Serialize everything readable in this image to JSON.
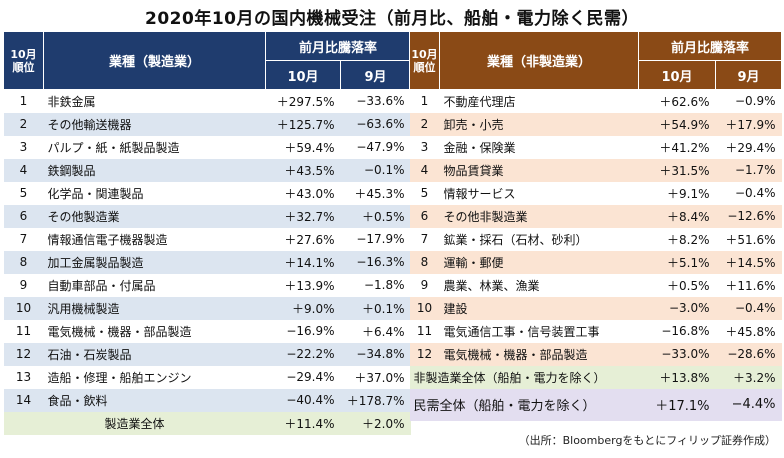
{
  "title": "2020年10月の国内機械受注（前月比、船舶・電力除く民需）",
  "headers": {
    "rank": "10月\n順位",
    "rank_line1": "10月",
    "rank_line2": "順位",
    "mfg_industry": "業種（製造業）",
    "nonmfg_industry": "業種（非製造業）",
    "mom": "前月比騰落率",
    "oct": "10月",
    "sep": "9月"
  },
  "manufacturing": {
    "rows": [
      {
        "rank": "1",
        "name": "非鉄金属",
        "oct": "＋297.5%",
        "sep": "−33.6%"
      },
      {
        "rank": "2",
        "name": "その他輸送機器",
        "oct": "＋125.7%",
        "sep": "−63.6%"
      },
      {
        "rank": "3",
        "name": "パルプ・紙・紙製品製造",
        "oct": "＋59.4%",
        "sep": "−47.9%"
      },
      {
        "rank": "4",
        "name": "鉄鋼製品",
        "oct": "＋43.5%",
        "sep": "−0.1%"
      },
      {
        "rank": "5",
        "name": "化学品・関連製品",
        "oct": "＋43.0%",
        "sep": "＋45.3%"
      },
      {
        "rank": "6",
        "name": "その他製造業",
        "oct": "＋32.7%",
        "sep": "＋0.5%"
      },
      {
        "rank": "7",
        "name": "情報通信電子機器製造",
        "oct": "＋27.6%",
        "sep": "−17.9%"
      },
      {
        "rank": "8",
        "name": "加工金属製品製造",
        "oct": "＋14.1%",
        "sep": "−16.3%"
      },
      {
        "rank": "9",
        "name": "自動車部品・付属品",
        "oct": "＋13.9%",
        "sep": "−1.8%"
      },
      {
        "rank": "10",
        "name": "汎用機械製造",
        "oct": "＋9.0%",
        "sep": "＋0.1%"
      },
      {
        "rank": "11",
        "name": "電気機械・機器・部品製造",
        "oct": "−16.9%",
        "sep": "＋6.4%"
      },
      {
        "rank": "12",
        "name": "石油・石炭製品",
        "oct": "−22.2%",
        "sep": "−34.8%"
      },
      {
        "rank": "13",
        "name": "造船・修理・船舶エンジン",
        "oct": "−29.4%",
        "sep": "＋37.0%"
      },
      {
        "rank": "14",
        "name": "食品・飲料",
        "oct": "−40.4%",
        "sep": "＋178.7%"
      }
    ],
    "total": {
      "name": "製造業全体",
      "oct": "＋11.4%",
      "sep": "＋2.0%"
    }
  },
  "non_manufacturing": {
    "rows": [
      {
        "rank": "1",
        "name": "不動産代理店",
        "oct": "＋62.6%",
        "sep": "−0.9%"
      },
      {
        "rank": "2",
        "name": "卸売・小売",
        "oct": "＋54.9%",
        "sep": "＋17.9%"
      },
      {
        "rank": "3",
        "name": "金融・保険業",
        "oct": "＋41.2%",
        "sep": "＋29.4%"
      },
      {
        "rank": "4",
        "name": "物品賃貸業",
        "oct": "＋31.5%",
        "sep": "−1.7%"
      },
      {
        "rank": "5",
        "name": "情報サービス",
        "oct": "＋9.1%",
        "sep": "−0.4%"
      },
      {
        "rank": "6",
        "name": "その他非製造業",
        "oct": "＋8.4%",
        "sep": "−12.6%"
      },
      {
        "rank": "7",
        "name": "鉱業・採石（石材、砂利）",
        "oct": "＋8.2%",
        "sep": "＋51.6%"
      },
      {
        "rank": "8",
        "name": "運輸・郵便",
        "oct": "＋5.1%",
        "sep": "＋14.5%"
      },
      {
        "rank": "9",
        "name": "農業、林業、漁業",
        "oct": "＋0.5%",
        "sep": "＋11.6%"
      },
      {
        "rank": "10",
        "name": "建設",
        "oct": "−3.0%",
        "sep": "−0.4%"
      },
      {
        "rank": "11",
        "name": "電気通信工事・信号装置工事",
        "oct": "−16.8%",
        "sep": "＋45.8%"
      },
      {
        "rank": "12",
        "name": "電気機械・機器・部品製造",
        "oct": "−33.0%",
        "sep": "−28.6%"
      }
    ],
    "total": {
      "name": "非製造業全体（船舶・電力を除く）",
      "oct": "＋13.8%",
      "sep": "＋3.2%"
    },
    "private_demand": {
      "name": "民需全体（船舶・電力を除く）",
      "oct": "＋17.1%",
      "sep": "−4.4%"
    }
  },
  "source": "（出所：Bloombergをもとにフィリップ証券作成）"
}
